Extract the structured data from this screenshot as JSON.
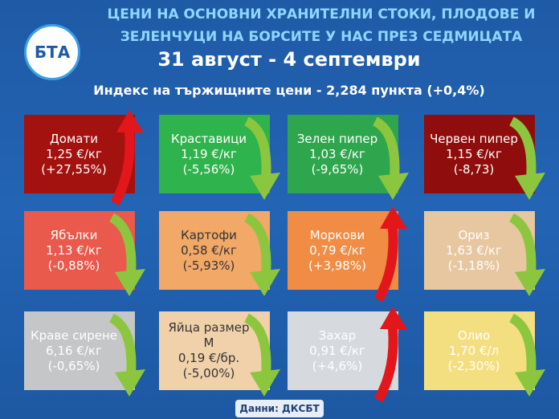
{
  "header": {
    "title_line1": "ЦЕНИ НА ОСНОВНИ ХРАНИТЕЛНИ СТОКИ, ПЛОДОВЕ И",
    "title_line2": "ЗЕЛЕНЧУЦИ НА БОРСИТЕ У НАС ПРЕЗ СЕДМИЦАТА",
    "date": "31 август - 4 септември",
    "index": "Индекс на тържищните цени - 2,284 пункта (+0,4%)"
  },
  "logo": "БТА",
  "items": [
    {
      "name": "Домати",
      "price": "1,25 €/кг",
      "change": "(+27,55%)",
      "trend": "up",
      "color": "#a3120f",
      "text_color": "#ffffff"
    },
    {
      "name": "Краставици",
      "price": "1,19 €/кг",
      "change": "(-5,56%)",
      "trend": "down",
      "color": "#2fb34c",
      "text_color": "#ffffff"
    },
    {
      "name": "Зелен пипер",
      "price": "1,03 €/кг",
      "change": "(-9,65%)",
      "trend": "down",
      "color": "#2ea64d",
      "text_color": "#ffffff"
    },
    {
      "name": "Червен пипер",
      "price": "1,15 €/кг",
      "change": "(-8,73)",
      "trend": "down",
      "color": "#8f0d0c",
      "text_color": "#ffffff"
    },
    {
      "name": "Ябълки",
      "price": "1,13 €/кг",
      "change": "(-0,88%)",
      "trend": "down",
      "color": "#e9594c",
      "text_color": "#ffffff"
    },
    {
      "name": "Картофи",
      "price": "0,58 €/кг",
      "change": "(-5,93%)",
      "trend": "down",
      "color": "#f2a866",
      "text_color": "#333333"
    },
    {
      "name": "Моркови",
      "price": "0,79 €/кг",
      "change": "(+3,98%)",
      "trend": "up",
      "color": "#f08c44",
      "text_color": "#ffffff"
    },
    {
      "name": "Ориз",
      "price": "1,63 €/кг",
      "change": "(-1,18%)",
      "trend": "down",
      "color": "#e6c7a0",
      "text_color": "#ffffff"
    },
    {
      "name": "Краве сирене",
      "price": "6,16 €/кг",
      "change": "(-0,65%)",
      "trend": "down",
      "color": "#c4c6c8",
      "text_color": "#ffffff"
    },
    {
      "name": "Яйца размер М",
      "price": "0,19 €/бр.",
      "change": "(-5,00%)",
      "trend": "down",
      "color": "#f1d1aa",
      "text_color": "#333333"
    },
    {
      "name": "Захар",
      "price": "0,91 €/кг",
      "change": "(+4,6%)",
      "trend": "up",
      "color": "#d6dadf",
      "text_color": "#ffffff"
    },
    {
      "name": "Олио",
      "price": "1,70 €/л",
      "change": "(-2,30%)",
      "trend": "down",
      "color": "#f4df80",
      "text_color": "#ffffff"
    }
  ],
  "source": "Данни: ДКСБТ"
}
